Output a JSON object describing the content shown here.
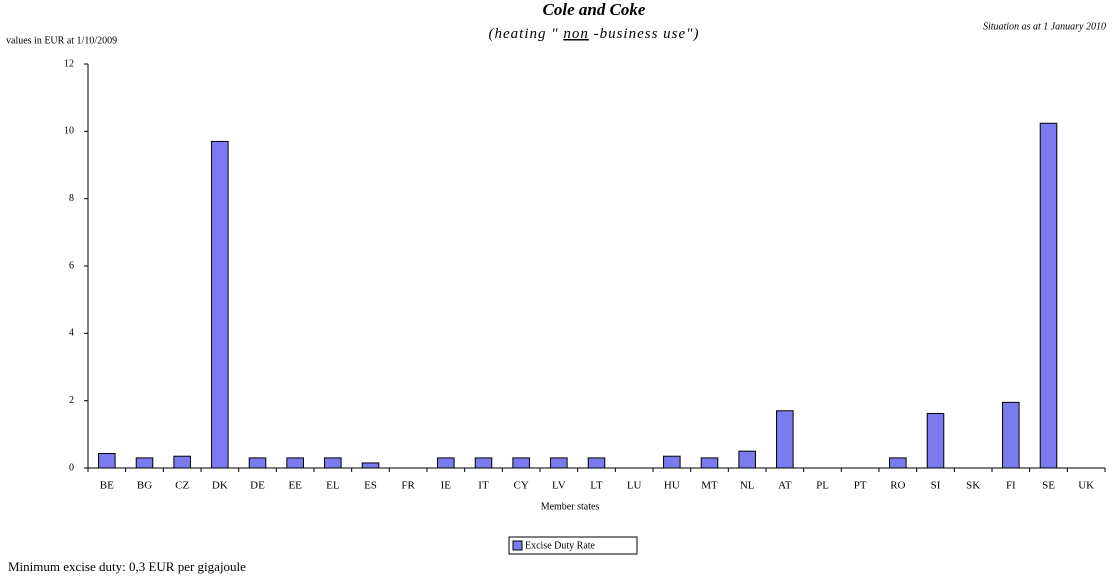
{
  "chart_data": {
    "type": "bar",
    "title": "Cole and Coke",
    "subtitle": [
      "(heating \" ",
      "non",
      " -business use\")"
    ],
    "situation_note": "Situation as at 1 January 2010",
    "units_note": "values in EUR at 1/10/2009",
    "x_label": "Member states",
    "footnote": "Minimum excise duty: 0,3 EUR per gigajoule",
    "categories": [
      "BE",
      "BG",
      "CZ",
      "DK",
      "DE",
      "EE",
      "EL",
      "ES",
      "FR",
      "IE",
      "IT",
      "CY",
      "LV",
      "LT",
      "LU",
      "HU",
      "MT",
      "NL",
      "AT",
      "PL",
      "PT",
      "RO",
      "SI",
      "SK",
      "FI",
      "SE",
      "UK"
    ],
    "series": [
      {
        "name": "Excise Duty Rate",
        "color": "#7b7bef",
        "values": [
          0.43,
          0.3,
          0.35,
          9.7,
          0.3,
          0.3,
          0.3,
          0.15,
          0,
          0.3,
          0.3,
          0.3,
          0.3,
          0.3,
          0,
          0.35,
          0.3,
          0.5,
          1.7,
          0,
          0,
          0.3,
          1.62,
          0,
          1.95,
          10.24,
          0
        ]
      }
    ],
    "ylim": [
      0,
      12
    ],
    "yticks": [
      0,
      2,
      4,
      6,
      8,
      10,
      12
    ],
    "grid": false
  }
}
